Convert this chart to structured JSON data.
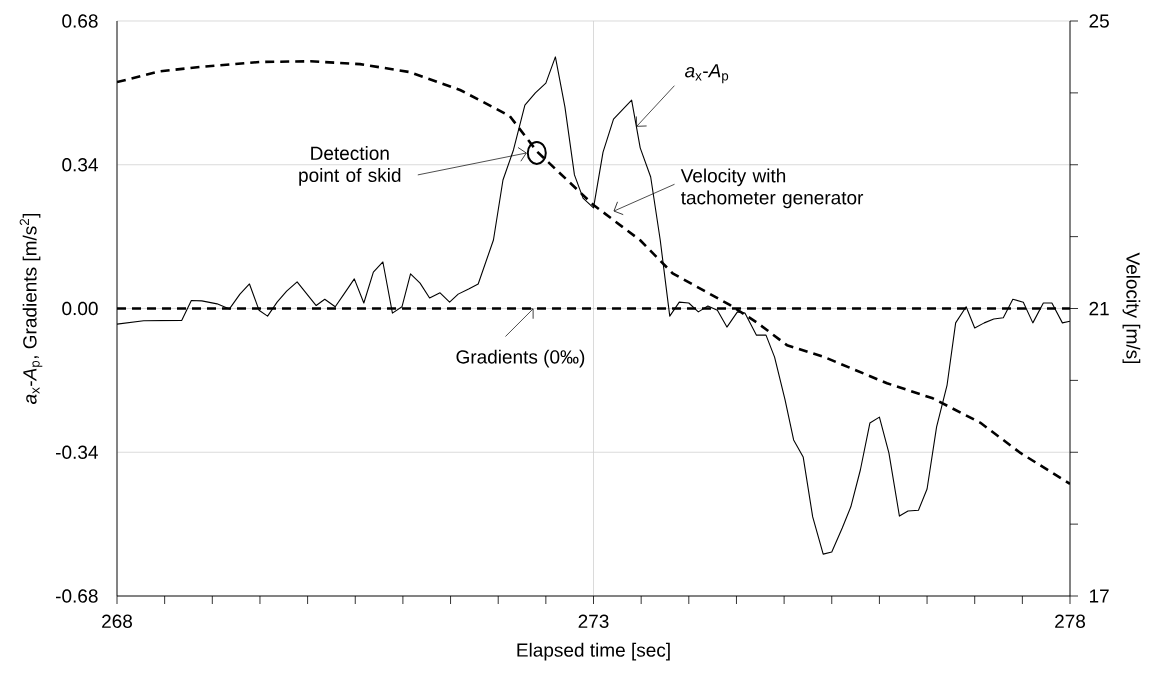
{
  "chart_data": {
    "type": "line",
    "xlabel": "Elapsed time [sec]",
    "ylabel": "*a*$_{x}$-*A*$_{p}$, Gradients [m/s$^{2}$]",
    "y2label": "Velocity [m/s]",
    "xlim": [
      268,
      278
    ],
    "xticks": [
      268,
      {
        "value": 268.5,
        "label": null
      },
      {
        "value": 269,
        "label": null
      },
      {
        "value": 269.5,
        "label": null
      },
      {
        "value": 270,
        "label": null
      },
      {
        "value": 270.5,
        "label": null
      },
      {
        "value": 271,
        "label": null
      },
      {
        "value": 271.5,
        "label": null
      },
      {
        "value": 272,
        "label": null
      },
      {
        "value": 272.5,
        "label": null
      },
      273,
      {
        "value": 273.5,
        "label": null
      },
      {
        "value": 274,
        "label": null
      },
      {
        "value": 274.5,
        "label": null
      },
      {
        "value": 275,
        "label": null
      },
      {
        "value": 275.5,
        "label": null
      },
      {
        "value": 276,
        "label": null
      },
      {
        "value": 276.5,
        "label": null
      },
      {
        "value": 277,
        "label": null
      },
      {
        "value": 277.5,
        "label": null
      },
      278
    ],
    "ylim": [
      -0.68,
      0.68
    ],
    "yticks": [
      {
        "value": -0.68,
        "label": "-0.68"
      },
      {
        "value": -0.34,
        "label": "-0.34"
      },
      {
        "value": 0,
        "label": "0.00"
      },
      {
        "value": 0.34,
        "label": "0.34"
      },
      {
        "value": 0.68,
        "label": "0.68"
      }
    ],
    "y2lim": [
      17,
      25
    ],
    "y2ticks": [
      17,
      {
        "value": 18,
        "label": null
      },
      {
        "value": 19,
        "label": null
      },
      {
        "value": 20,
        "label": null
      },
      21,
      {
        "value": 22,
        "label": null
      },
      {
        "value": 23,
        "label": null
      },
      {
        "value": 24,
        "label": null
      },
      25
    ],
    "grid": true,
    "marker": "none",
    "annotations": [
      {
        "text": "*a*$_{x}$-*A*$_{p}$",
        "x": 273.45,
        "y": 0.43
      },
      {
        "text": "Detection point of skid",
        "x": 272.3,
        "y": 0.368
      },
      "Velocity with tachometer generator",
      {
        "text": "Gradients (0‰)",
        "x": 272.37,
        "y": 0
      }
    ],
    "series": [
      {
        "color": "#000000",
        "line_style": "solid",
        "x": [
          268.0,
          268.28,
          268.68,
          268.78,
          268.89,
          269.05,
          269.18,
          269.29,
          269.39,
          269.49,
          269.58,
          269.68,
          269.78,
          269.89,
          270.09,
          270.18,
          270.29,
          270.39,
          270.49,
          270.59,
          270.69,
          270.79,
          270.89,
          270.99,
          271.08,
          271.18,
          271.28,
          271.39,
          271.49,
          271.58,
          271.69,
          271.79,
          271.95,
          272.05,
          272.16,
          272.28,
          272.39,
          272.5,
          272.6,
          272.7,
          272.8,
          272.89,
          273.0,
          273.1,
          273.21,
          273.4,
          273.49,
          273.6,
          273.7,
          273.8,
          273.9,
          274.0,
          274.1,
          274.2,
          274.3,
          274.4,
          274.51,
          274.59,
          274.71,
          274.81,
          274.9,
          275.01,
          275.1,
          275.2,
          275.3,
          275.41,
          275.5,
          275.61,
          275.7,
          275.8,
          275.9,
          276.0,
          276.1,
          276.21,
          276.3,
          276.41,
          276.5,
          276.6,
          276.71,
          276.8,
          276.91,
          277.0,
          277.1,
          277.2,
          277.3,
          277.4,
          277.51,
          277.61,
          277.72,
          277.81,
          277.92,
          278.0
        ],
        "values": [
          -0.037,
          -0.029,
          -0.028,
          0.019,
          0.018,
          0.011,
          -0.001,
          0.034,
          0.058,
          -0.004,
          -0.018,
          0.015,
          0.041,
          0.063,
          0.007,
          0.022,
          0.004,
          0.037,
          0.07,
          0.013,
          0.086,
          0.11,
          -0.011,
          0.004,
          0.082,
          0.06,
          0.025,
          0.037,
          0.015,
          0.034,
          0.046,
          0.058,
          0.162,
          0.304,
          0.375,
          0.481,
          0.51,
          0.533,
          0.595,
          0.477,
          0.316,
          0.261,
          0.238,
          0.37,
          0.448,
          0.493,
          0.38,
          0.311,
          0.162,
          -0.018,
          0.015,
          0.013,
          -0.008,
          0.006,
          -0.004,
          -0.044,
          -0.008,
          -0.011,
          -0.063,
          -0.063,
          -0.115,
          -0.216,
          -0.311,
          -0.351,
          -0.493,
          -0.581,
          -0.576,
          -0.519,
          -0.469,
          -0.382,
          -0.271,
          -0.257,
          -0.342,
          -0.491,
          -0.479,
          -0.477,
          -0.427,
          -0.28,
          -0.181,
          -0.034,
          0.004,
          -0.046,
          -0.034,
          -0.025,
          -0.022,
          0.022,
          0.015,
          -0.034,
          0.013,
          0.013,
          -0.034,
          -0.03
        ]
      },
      {
        "color": "#000000",
        "line_style": "dashed",
        "axis": "y2",
        "x": [
          268.0,
          268.45,
          268.87,
          269.5,
          270.03,
          270.55,
          271.07,
          271.6,
          272.12,
          272.41,
          273.0,
          273.49,
          273.83,
          274.43,
          274.72,
          275.03,
          275.41,
          276.08,
          276.56,
          277.06,
          277.48,
          278.0
        ],
        "values": [
          24.15,
          24.3,
          24.36,
          24.43,
          24.44,
          24.4,
          24.29,
          24.04,
          23.68,
          23.18,
          22.44,
          21.95,
          21.49,
          21.05,
          20.8,
          20.49,
          20.33,
          19.96,
          19.75,
          19.41,
          18.99,
          18.56
        ]
      },
      {
        "color": "#000000",
        "line_style": "dashed",
        "x": [
          268,
          278
        ],
        "values": [
          0,
          0
        ]
      }
    ]
  }
}
